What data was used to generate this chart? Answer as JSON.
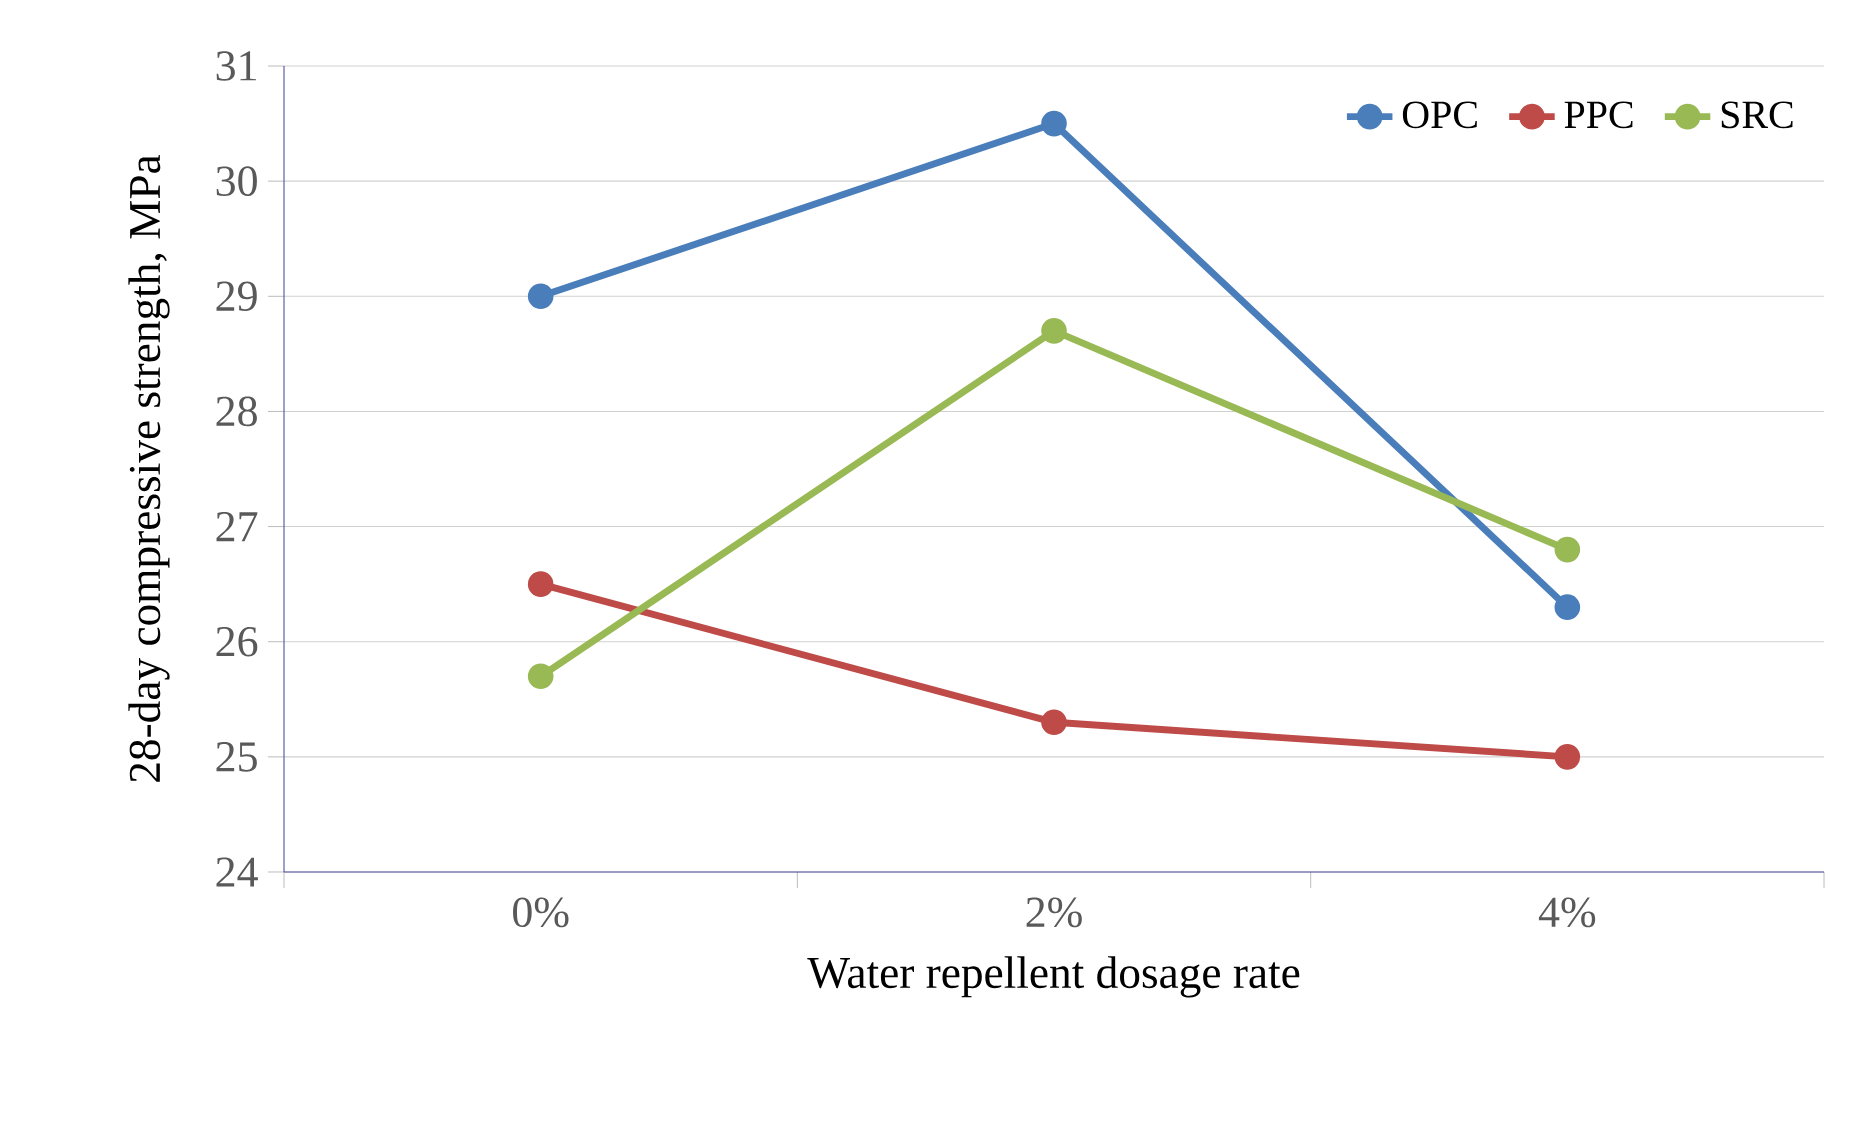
{
  "chart_data": {
    "type": "line",
    "xlabel": "Water repellent dosage rate",
    "ylabel": "28-day compressive strength, MPa",
    "categories": [
      "0%",
      "2%",
      "4%"
    ],
    "series": [
      {
        "name": "OPC",
        "color": "#4a7ebb",
        "values": [
          29,
          30.5,
          26.3
        ]
      },
      {
        "name": "PPC",
        "color": "#be4b48",
        "values": [
          26.5,
          25.3,
          25.0
        ]
      },
      {
        "name": "SRC",
        "color": "#98b954",
        "values": [
          25.7,
          28.7,
          26.8
        ]
      }
    ],
    "ylim": [
      24,
      31
    ],
    "yticks": [
      24,
      25,
      26,
      27,
      28,
      29,
      30,
      31
    ],
    "grid": "y",
    "legend": "top right",
    "marker": "circle",
    "line_style": "solid"
  }
}
